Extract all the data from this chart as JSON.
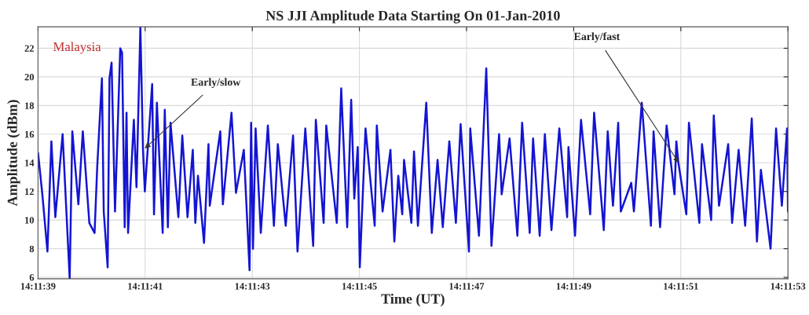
{
  "chart_data": {
    "type": "line",
    "title": "NS JJI Amplitude Data Starting On 01-Jan-2010",
    "xlabel": "Time (UT)",
    "ylabel": "Amplitude (dBm)",
    "x": [
      14.1941667,
      14.1941884,
      14.1942156,
      14.1942359,
      14.1942564,
      14.1942942,
      14.1943309,
      14.1943445,
      14.1943759,
      14.1943989,
      14.1944328,
      14.19446,
      14.1944736,
      14.1944981,
      14.1945075,
      14.1945278,
      14.1945373,
      14.1945481,
      14.1945659,
      14.1945931,
      14.1946025,
      14.1946161,
      14.1946256,
      14.1946336,
      14.1946636,
      14.1946773,
      14.1946975,
      14.1947111,
      14.1947206,
      14.1947586,
      14.1947681,
      14.1947831,
      14.1948131,
      14.1948239,
      14.19484,
      14.1948536,
      14.1948945,
      14.1949148,
      14.194942,
      14.1949692,
      14.1949825,
      14.1949961,
      14.1950275,
      14.1950506,
      14.1950573,
      14.1951117,
      14.1951253,
      14.19517,
      14.1951931,
      14.1952339,
      14.1952636,
      14.1952717,
      14.1952814,
      14.195295,
      14.195322,
      14.1953586,
      14.19539,
      14.1954103,
      14.1954511,
      14.1954892,
      14.1955123,
      14.1955528,
      14.1955936,
      14.1956073,
      14.1956478,
      14.1956614,
      14.1957159,
      14.1957389,
      14.19577,
      14.1957906,
      14.1958067,
      14.1958245,
      14.1958353,
      14.195865,
      14.1959125,
      14.1959236,
      14.1959534,
      14.1959942,
      14.1960145,
      14.1960348,
      14.1960553,
      14.1960648,
      14.1961028,
      14.1961164,
      14.1961367,
      14.19618,
      14.1962086,
      14.1962386,
      14.1962656,
      14.1962995,
      14.1963336,
      14.1963581,
      14.1964014,
      14.1964081,
      14.1964531,
      14.1964911,
      14.1965181,
      14.1965575,
      14.1965711,
      14.196612,
      14.1966525,
      14.196677,
      14.1967164,
      14.1967339,
      14.1967681,
      14.196795,
      14.1968292,
      14.1968698,
      14.1969106,
      14.1969173,
      14.1969514,
      14.1969825,
      14.19703,
      14.1970503,
      14.1971006,
      14.1971209,
      14.1971481,
      14.1971753,
      14.1971889,
      14.1972431,
      14.1972567,
      14.1972975,
      14.197345,
      14.1973586,
      14.1973925,
      14.1974264,
      14.1974672,
      14.1974767,
      14.1974875,
      14.1975284,
      14.197542,
      14.1975961,
      14.1976098,
      14.1976573,
      14.1976709,
      14.1976981,
      14.1977456,
      14.1977659,
      14.1977998,
      14.1978336,
      14.1978678,
      14.1978948,
      14.1979153,
      14.1979653,
      14.1979939,
      14.1980239,
      14.1980509,
      14.1980556
    ],
    "series": [
      {
        "color": "#1414d2",
        "values": [
          14.7,
          11.9,
          7.8,
          15.5,
          10.2,
          16.0,
          5.9,
          16.2,
          11.1,
          16.2,
          9.8,
          9.1,
          13.7,
          19.9,
          10.6,
          6.7,
          19.9,
          21.0,
          10.6,
          22.0,
          21.7,
          9.5,
          17.5,
          9.1,
          17.0,
          12.3,
          23.5,
          14.9,
          12.0,
          19.5,
          10.4,
          18.2,
          9.1,
          17.7,
          9.5,
          16.8,
          10.2,
          15.9,
          10.2,
          14.9,
          9.8,
          13.1,
          8.4,
          15.3,
          11.0,
          16.2,
          11.1,
          17.5,
          11.9,
          14.9,
          6.5,
          16.8,
          8.0,
          16.4,
          9.1,
          16.6,
          9.6,
          15.3,
          9.6,
          15.9,
          7.8,
          16.4,
          8.2,
          17.0,
          9.8,
          16.6,
          9.8,
          19.2,
          9.5,
          18.4,
          11.5,
          15.1,
          6.7,
          16.4,
          9.6,
          16.6,
          10.6,
          14.9,
          8.5,
          13.1,
          10.4,
          14.2,
          9.8,
          14.8,
          9.6,
          18.2,
          9.1,
          14.2,
          9.5,
          15.5,
          9.8,
          16.7,
          7.8,
          16.4,
          8.9,
          20.6,
          8.2,
          16.0,
          11.8,
          15.7,
          8.9,
          16.8,
          9.1,
          15.7,
          8.9,
          16.0,
          9.3,
          16.4,
          10.2,
          15.1,
          8.9,
          17.0,
          10.4,
          17.5,
          9.3,
          16.2,
          11.0,
          16.8,
          10.6,
          12.6,
          10.6,
          18.2,
          9.6,
          16.2,
          9.5,
          16.6,
          11.8,
          15.5,
          14.0,
          10.4,
          16.8,
          9.8,
          15.3,
          10.0,
          17.3,
          11.0,
          15.3,
          9.8,
          14.9,
          9.6,
          17.1,
          8.5,
          13.5,
          8.0,
          16.4,
          11.0,
          16.4,
          10.6
        ]
      }
    ],
    "xlim": [
      14.1941667,
      14.1980556
    ],
    "xticks": [
      {
        "value": 14.1941667,
        "label": "14:11:39"
      },
      {
        "value": 14.1947222,
        "label": "14:11:41"
      },
      {
        "value": 14.1952778,
        "label": "14:11:43"
      },
      {
        "value": 14.1958333,
        "label": "14:11:45"
      },
      {
        "value": 14.1963889,
        "label": "14:11:47"
      },
      {
        "value": 14.1969444,
        "label": "14:11:49"
      },
      {
        "value": 14.1975,
        "label": "14:11:51"
      },
      {
        "value": 14.1980556,
        "label": "14:11:53"
      }
    ],
    "ylim": [
      5.9,
      23.5
    ],
    "yticks": [
      6,
      8,
      10,
      12,
      14,
      16,
      18,
      20,
      22
    ],
    "grid": true,
    "annotations": [
      "Malaysia",
      {
        "text": "Early/slow",
        "x": 14.1947206,
        "y": 15.0
      },
      {
        "text": "Early/fast",
        "x": 14.1974889,
        "y": 14.0
      }
    ]
  }
}
